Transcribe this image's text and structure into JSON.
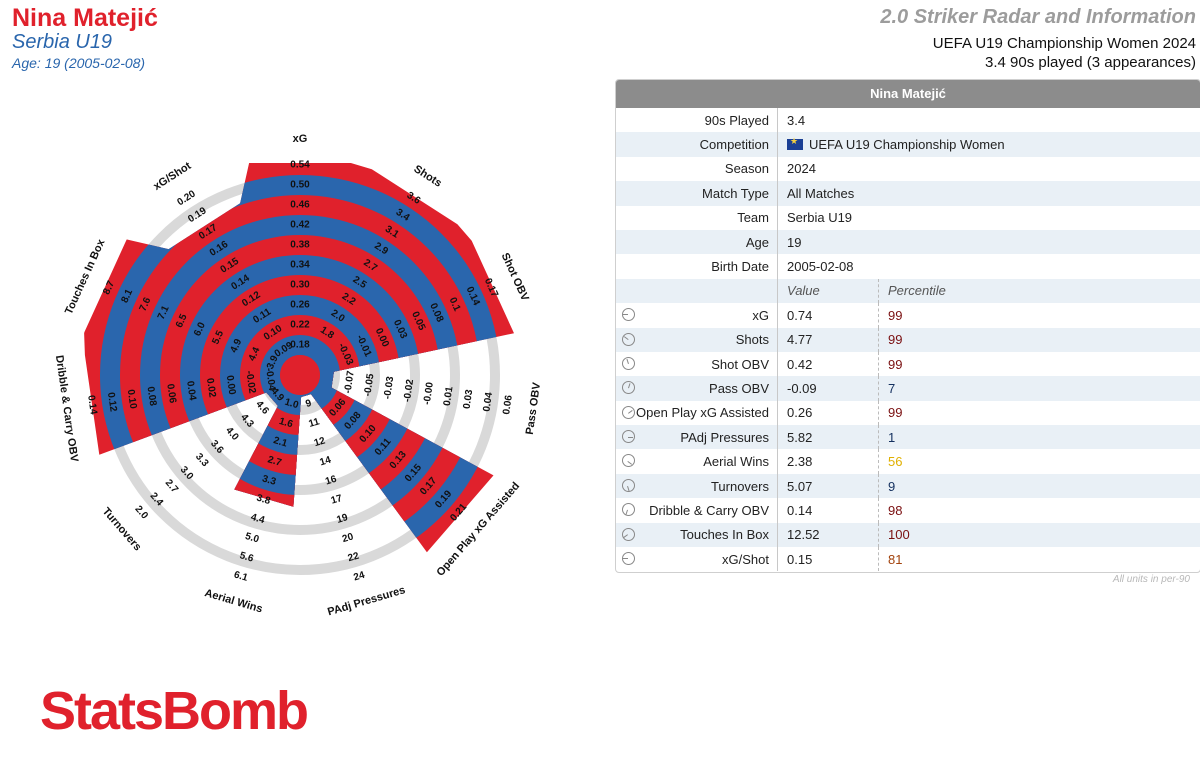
{
  "header": {
    "player_name": "Nina Matejić",
    "team": "Serbia U19",
    "age_line": "Age: 19 (2005-02-08)",
    "radar_title": "2.0 Striker Radar and Information",
    "competition_line": "UEFA U19 Championship Women 2024",
    "played_line": "3.4 90s played (3 appearances)"
  },
  "colors": {
    "red": "#e0212c",
    "blue": "#2a66ad",
    "ring": "#d9d9d9"
  },
  "chart_data": {
    "type": "radar",
    "rings": 10,
    "metrics": [
      {
        "name": "xG",
        "ticks": [
          "0.18",
          "0.22",
          "0.26",
          "0.30",
          "0.34",
          "0.38",
          "0.42",
          "0.46",
          "0.50",
          "0.54"
        ],
        "fill": 0.99
      },
      {
        "name": "Shots",
        "ticks": [
          "1.8",
          "2.0",
          "2.2",
          "2.5",
          "2.7",
          "2.9",
          "3.1",
          "3.4",
          "3.6"
        ],
        "fill": 0.99
      },
      {
        "name": "Shot OBV",
        "ticks": [
          "-0.03",
          "-0.01",
          "0.00",
          "0.03",
          "0.05",
          "0.08",
          "0.1",
          "0.14",
          "0.17"
        ],
        "fill": 0.99
      },
      {
        "name": "Pass OBV",
        "ticks": [
          "-0.07",
          "-0.05",
          "-0.03",
          "-0.02",
          "-0.00",
          "0.01",
          "0.03",
          "0.04",
          "0.06"
        ],
        "fill": 0.07
      },
      {
        "name": "Open Play xG Assisted",
        "ticks": [
          "0.06",
          "0.08",
          "0.10",
          "0.11",
          "0.13",
          "0.15",
          "0.17",
          "0.19",
          "0.21"
        ],
        "fill": 0.99
      },
      {
        "name": "PAdj Pressures",
        "ticks": [
          "9",
          "11",
          "12",
          "14",
          "16",
          "17",
          "19",
          "20",
          "22",
          "24"
        ],
        "fill": 0.01
      },
      {
        "name": "Aerial Wins",
        "ticks": [
          "1.0",
          "1.6",
          "2.1",
          "2.7",
          "3.3",
          "3.8",
          "4.4",
          "5.0",
          "5.6",
          "6.1"
        ],
        "fill": 0.56
      },
      {
        "name": "Turnovers",
        "ticks": [
          "4.9",
          "4.6",
          "4.3",
          "4.0",
          "3.6",
          "3.3",
          "3.0",
          "2.7",
          "2.4",
          "2.0"
        ],
        "fill": 0.09
      },
      {
        "name": "Dribble & Carry OBV",
        "ticks": [
          "-0.04",
          "-0.02",
          "0.00",
          "0.02",
          "0.04",
          "0.06",
          "0.08",
          "0.10",
          "0.12",
          "0.14"
        ],
        "fill": 0.98
      },
      {
        "name": "Touches In Box",
        "ticks": [
          "3.9",
          "4.4",
          "4.9",
          "5.5",
          "6.0",
          "6.5",
          "7.1",
          "7.6",
          "8.1",
          "8.7"
        ],
        "fill": 1.0
      },
      {
        "name": "xG/Shot",
        "ticks": [
          "0.09",
          "0.10",
          "0.11",
          "0.12",
          "0.14",
          "0.15",
          "0.16",
          "0.17",
          "0.19",
          "0.20"
        ],
        "fill": 0.81
      }
    ]
  },
  "info_table": {
    "title": "Nina Matejić",
    "rows": [
      {
        "label": "90s Played",
        "value": "3.4"
      },
      {
        "label": "Competition",
        "value": "UEFA U19 Championship Women"
      },
      {
        "label": "Season",
        "value": "2024"
      },
      {
        "label": "Match Type",
        "value": "All Matches"
      },
      {
        "label": "Team",
        "value": "Serbia U19"
      },
      {
        "label": "Age",
        "value": "19"
      },
      {
        "label": "Birth Date",
        "value": "2005-02-08"
      }
    ],
    "value_header": "Value",
    "percentile_header": "Percentile",
    "metrics": [
      {
        "label": "xG",
        "value": "0.74",
        "percentile": "99",
        "color": "#7a0f10",
        "icon": "gauge-icon"
      },
      {
        "label": "Shots",
        "value": "4.77",
        "percentile": "99",
        "color": "#7a0f10",
        "icon": "gauge-icon"
      },
      {
        "label": "Shot OBV",
        "value": "0.42",
        "percentile": "99",
        "color": "#7a0f10",
        "icon": "gauge-icon"
      },
      {
        "label": "Pass OBV",
        "value": "-0.09",
        "percentile": "7",
        "color": "#14305f",
        "icon": "gauge-icon"
      },
      {
        "label": "Open Play xG Assisted",
        "value": "0.26",
        "percentile": "99",
        "color": "#7a0f10",
        "icon": "gauge-icon"
      },
      {
        "label": "PAdj Pressures",
        "value": "5.82",
        "percentile": "1",
        "color": "#14305f",
        "icon": "gauge-icon"
      },
      {
        "label": "Aerial Wins",
        "value": "2.38",
        "percentile": "56",
        "color": "#e0b000",
        "icon": "gauge-icon"
      },
      {
        "label": "Turnovers",
        "value": "5.07",
        "percentile": "9",
        "color": "#14305f",
        "icon": "gauge-icon"
      },
      {
        "label": "Dribble & Carry OBV",
        "value": "0.14",
        "percentile": "98",
        "color": "#7a0f10",
        "icon": "gauge-icon"
      },
      {
        "label": "Touches In Box",
        "value": "12.52",
        "percentile": "100",
        "color": "#7a0f10",
        "icon": "gauge-icon"
      },
      {
        "label": "xG/Shot",
        "value": "0.15",
        "percentile": "81",
        "color": "#a3430d",
        "icon": "gauge-icon"
      }
    ],
    "footnote": "All units in per-90"
  },
  "branding": {
    "logo_text": "StatsBomb"
  }
}
